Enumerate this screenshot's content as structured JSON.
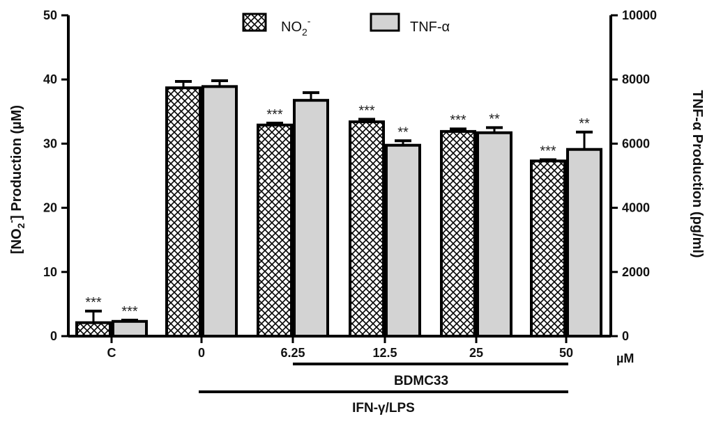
{
  "chart_data": {
    "type": "bar",
    "categories": [
      "C",
      "0",
      "6.25",
      "12.5",
      "25",
      "50"
    ],
    "unit_label": "µM",
    "left_axis": {
      "label_prefix": "[NO",
      "label_sub": "2",
      "label_sup": "-",
      "label_suffix": "] Production (µM)",
      "ylim": [
        0,
        50
      ],
      "ticks": [
        "0",
        "10",
        "20",
        "30",
        "40",
        "50"
      ]
    },
    "right_axis": {
      "label": "TNF-α Production (pg/ml)",
      "ylim": [
        0,
        10000
      ],
      "ticks": [
        "0",
        "2000",
        "4000",
        "6000",
        "8000",
        "10000"
      ]
    },
    "series": [
      {
        "name": "NO",
        "name_sub": "2",
        "name_sup": "-",
        "axis": "left",
        "fill": "crosshatch",
        "values": [
          2.1,
          38.7,
          32.9,
          33.4,
          31.9,
          27.3
        ],
        "errors": [
          1.8,
          1.0,
          0.3,
          0.4,
          0.4,
          0.2
        ],
        "significance": [
          "***",
          "",
          "***",
          "***",
          "***",
          "***"
        ]
      },
      {
        "name": "TNF-α",
        "axis": "right",
        "fill": "#d3d3d3",
        "values": [
          460,
          7780,
          7350,
          5950,
          6340,
          5820
        ],
        "errors": [
          40,
          180,
          240,
          140,
          160,
          540
        ],
        "significance": [
          "***",
          "",
          "",
          "**",
          "**",
          "**"
        ]
      }
    ],
    "brackets": [
      {
        "label": "BDMC33",
        "from_category": 2,
        "to_category": 5
      },
      {
        "label": "IFN-γ/LPS",
        "from_category": 1,
        "to_category": 5
      }
    ],
    "legend": "top-center"
  }
}
